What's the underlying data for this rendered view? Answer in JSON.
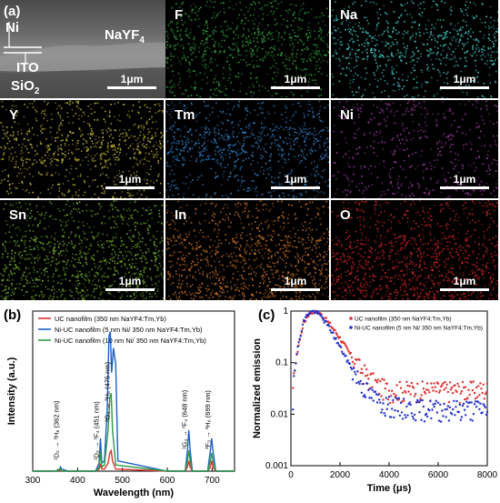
{
  "panel_a": {
    "letter": "(a)",
    "sem": {
      "ni": "Ni",
      "nayf4": "NaYF4",
      "ito": "ITO",
      "sio2": "SiO2",
      "scale": "1μm"
    },
    "maps": [
      {
        "label": "F",
        "color": "#2ea03a",
        "scale": "1μm"
      },
      {
        "label": "Na",
        "color": "#3fc7c0",
        "scale": "1μm"
      },
      {
        "label": "Y",
        "color": "#bcb233",
        "scale": "1μm"
      },
      {
        "label": "Tm",
        "color": "#2f7fc8",
        "scale": "1μm"
      },
      {
        "label": "Ni",
        "color": "#9a3aa0",
        "scale": "1μm"
      },
      {
        "label": "Sn",
        "color": "#6ea828",
        "scale": "1μm"
      },
      {
        "label": "In",
        "color": "#c76f22",
        "scale": "1μm"
      },
      {
        "label": "O",
        "color": "#d02424",
        "scale": "1μm"
      }
    ]
  },
  "panel_b": {
    "letter": "(b)",
    "chart_data": {
      "type": "line",
      "xlabel": "Wavelength (nm)",
      "ylabel": "Intensity (a.u.)",
      "xlim": [
        300,
        750
      ],
      "xticks": [
        300,
        400,
        500,
        600,
        700
      ],
      "legend_position": "top",
      "series": [
        {
          "name": "UC nanofilm (350 nm NaYF4:Tm,Yb)",
          "color": "#e03030",
          "x": [
            300,
            350,
            360,
            362,
            364,
            380,
            440,
            448,
            451,
            454,
            460,
            468,
            472,
            475,
            478,
            485,
            600,
            640,
            645,
            648,
            651,
            656,
            690,
            696,
            699,
            702,
            708,
            750
          ],
          "y": [
            0,
            0,
            0.01,
            0,
            0,
            0,
            0,
            0.01,
            0.03,
            0.01,
            0.01,
            0.04,
            0.09,
            0.1,
            0.05,
            0.01,
            0,
            0,
            0.02,
            0.05,
            0.02,
            0,
            0,
            0.02,
            0.05,
            0.02,
            0,
            0
          ]
        },
        {
          "name": "Ni-UC nanofilm (5 nm Ni/ 350 nm NaYF4:Tm,Yb)",
          "color": "#1f5fc4",
          "x": [
            300,
            350,
            360,
            362,
            364,
            380,
            440,
            448,
            451,
            454,
            460,
            466,
            470,
            473,
            476,
            480,
            485,
            490,
            600,
            640,
            645,
            648,
            651,
            656,
            690,
            696,
            699,
            702,
            708,
            750
          ],
          "y": [
            0,
            0,
            0.01,
            0.02,
            0.01,
            0,
            0,
            0.04,
            0.16,
            0.04,
            0.05,
            0.3,
            0.66,
            0.68,
            0.48,
            0.6,
            0.52,
            0.05,
            0,
            0,
            0.1,
            0.2,
            0.1,
            0,
            0,
            0.1,
            0.16,
            0.1,
            0,
            0
          ]
        },
        {
          "name": "Ni-UC nanofilm (10 nm Ni/ 350 nm NaYF4:Tm,Yb)",
          "color": "#2e9a47",
          "x": [
            300,
            350,
            360,
            362,
            364,
            380,
            440,
            448,
            451,
            454,
            460,
            468,
            472,
            475,
            478,
            485,
            600,
            640,
            645,
            648,
            651,
            656,
            690,
            696,
            699,
            702,
            708,
            750
          ],
          "y": [
            0,
            0,
            0.01,
            0.01,
            0,
            0,
            0,
            0.02,
            0.09,
            0.02,
            0.03,
            0.2,
            0.36,
            0.38,
            0.2,
            0.03,
            0,
            0,
            0.05,
            0.1,
            0.05,
            0,
            0,
            0.05,
            0.09,
            0.05,
            0,
            0
          ]
        }
      ],
      "annotations": [
        "¹D₂ → ³H₆ (362 nm)",
        "¹D₂ → ³F₄ (451 nm)",
        "¹G₄ → ³H₆ (475 nm)",
        "¹G₄ → ³F₄ (648 nm)",
        "³F₃ → ³H₆ (699 nm)"
      ]
    }
  },
  "panel_c": {
    "letter": "(c)",
    "chart_data": {
      "type": "scatter",
      "xlabel": "Time (μs)",
      "ylabel": "Normalized emission",
      "xlim": [
        0,
        8000
      ],
      "ylim": [
        0.001,
        1
      ],
      "yscale": "log",
      "xticks": [
        0,
        2000,
        4000,
        6000,
        8000
      ],
      "yticks": [
        0.001,
        0.01,
        0.1,
        1
      ],
      "legend_position": "top-right",
      "series": [
        {
          "name": "UC nanofilm (350 nm NaYF4:Tm,Yb)",
          "color": "#e03030",
          "x": [
            100,
            300,
            500,
            700,
            900,
            1100,
            1300,
            1600,
            2000,
            2400,
            2800,
            3200,
            3600,
            4000,
            5000,
            6000,
            7000,
            8000
          ],
          "y": [
            0.05,
            0.2,
            0.55,
            0.85,
            1.0,
            0.95,
            0.8,
            0.55,
            0.3,
            0.15,
            0.08,
            0.05,
            0.035,
            0.03,
            0.03,
            0.03,
            0.03,
            0.03
          ]
        },
        {
          "name": "Ni-UC nanofilm (5 nm Ni/ 350 nm NaYF4:Tm,Yb)",
          "color": "#2030d0",
          "x": [
            100,
            300,
            500,
            700,
            900,
            1100,
            1300,
            1600,
            2000,
            2400,
            2800,
            3200,
            3600,
            4000,
            5000,
            6000,
            7000,
            8000
          ],
          "y": [
            0.05,
            0.22,
            0.6,
            0.9,
            1.0,
            0.92,
            0.72,
            0.45,
            0.2,
            0.09,
            0.045,
            0.025,
            0.018,
            0.015,
            0.013,
            0.013,
            0.013,
            0.013
          ]
        }
      ]
    }
  }
}
